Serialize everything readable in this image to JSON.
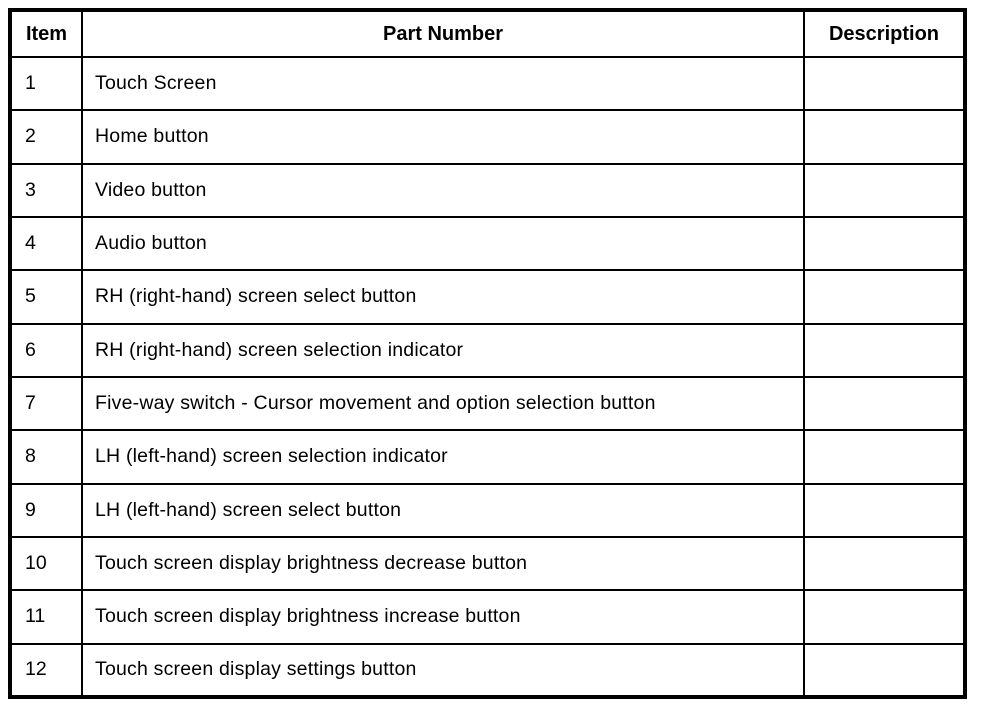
{
  "table": {
    "title": "parts-legend-table",
    "headers": {
      "item": "Item",
      "part_number": "Part Number",
      "description": "Description"
    },
    "rows": [
      {
        "item": "1",
        "part_number": "Touch Screen",
        "description": ""
      },
      {
        "item": "2",
        "part_number": "Home button",
        "description": ""
      },
      {
        "item": "3",
        "part_number": "Video button",
        "description": ""
      },
      {
        "item": "4",
        "part_number": "Audio button",
        "description": ""
      },
      {
        "item": "5",
        "part_number": "RH (right-hand) screen select button",
        "description": ""
      },
      {
        "item": "6",
        "part_number": "RH (right-hand) screen selection indicator",
        "description": ""
      },
      {
        "item": "7",
        "part_number": "Five-way switch - Cursor movement and option selection button",
        "description": ""
      },
      {
        "item": "8",
        "part_number": "LH (left-hand) screen selection indicator",
        "description": ""
      },
      {
        "item": "9",
        "part_number": "LH (left-hand) screen select button",
        "description": ""
      },
      {
        "item": "10",
        "part_number": "Touch screen display brightness decrease button",
        "description": ""
      },
      {
        "item": "11",
        "part_number": "Touch screen display brightness increase button",
        "description": ""
      },
      {
        "item": "12",
        "part_number": "Touch screen display settings button",
        "description": ""
      }
    ],
    "colors": {
      "border": "#000000",
      "text": "#000000",
      "background": "#ffffff"
    }
  }
}
